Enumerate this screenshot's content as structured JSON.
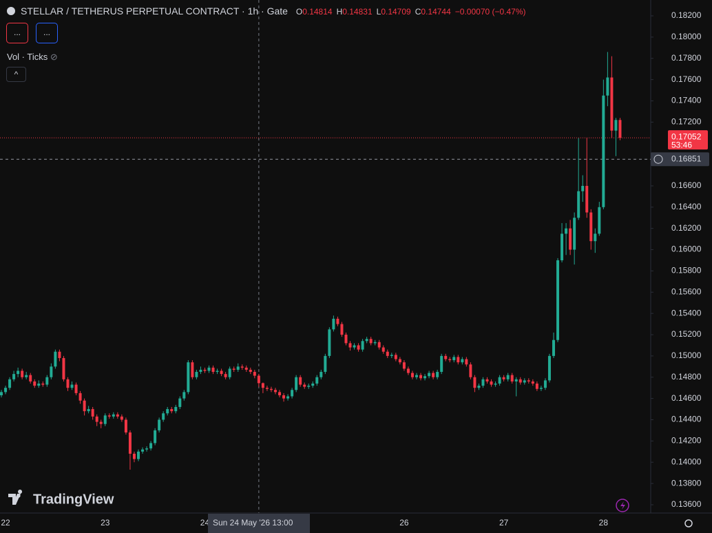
{
  "chart_data": {
    "type": "candlestick",
    "title": "STELLAR / TETHERUS PERPETUAL CONTRACT · 1h · Gate",
    "up_color": "#22ab94",
    "down_color": "#f23645",
    "categories": [
      null,
      "22",
      null,
      null,
      null,
      null,
      null,
      null,
      null,
      null,
      null,
      null,
      null,
      null,
      null,
      null,
      null,
      null,
      null,
      null,
      null,
      null,
      null,
      null,
      null,
      "23",
      null,
      null,
      null,
      null,
      null,
      null,
      null,
      null,
      null,
      null,
      null,
      null,
      null,
      null,
      null,
      null,
      null,
      null,
      null,
      null,
      null,
      null,
      null,
      "24",
      null,
      null,
      null,
      null,
      null,
      null,
      null,
      null,
      null,
      null,
      null,
      null,
      null,
      null,
      null,
      null,
      null,
      null,
      null,
      null,
      null,
      null,
      null,
      null,
      null,
      null,
      null,
      null,
      null,
      null,
      null,
      null,
      null,
      null,
      null,
      null,
      null,
      null,
      null,
      null,
      null,
      null,
      null,
      null,
      null,
      null,
      null,
      "26",
      null,
      null,
      null,
      null,
      null,
      null,
      null,
      null,
      null,
      null,
      null,
      null,
      null,
      null,
      null,
      null,
      null,
      null,
      null,
      null,
      null,
      null,
      null,
      "27",
      null,
      null,
      null,
      null,
      null,
      null,
      null,
      null,
      null,
      null,
      null,
      null,
      null,
      null,
      null,
      null,
      null,
      null,
      null,
      null,
      null,
      null,
      null,
      "28",
      null,
      null,
      null,
      null
    ],
    "ohlc": [
      [
        0.1463,
        0.1468,
        0.1461,
        0.1466
      ],
      [
        0.1466,
        0.1472,
        0.1464,
        0.147
      ],
      [
        0.147,
        0.148,
        0.1468,
        0.1478
      ],
      [
        0.1478,
        0.1486,
        0.1476,
        0.1483
      ],
      [
        0.1483,
        0.1489,
        0.148,
        0.1486
      ],
      [
        0.1486,
        0.1488,
        0.1478,
        0.148
      ],
      [
        0.148,
        0.1485,
        0.1478,
        0.1482
      ],
      [
        0.1482,
        0.1484,
        0.1474,
        0.1476
      ],
      [
        0.1476,
        0.1478,
        0.147,
        0.1472
      ],
      [
        0.1472,
        0.1477,
        0.147,
        0.1474
      ],
      [
        0.1474,
        0.1476,
        0.1471,
        0.1473
      ],
      [
        0.1473,
        0.1482,
        0.1471,
        0.148
      ],
      [
        0.148,
        0.1493,
        0.1478,
        0.149
      ],
      [
        0.149,
        0.1506,
        0.1488,
        0.1504
      ],
      [
        0.1504,
        0.1506,
        0.1495,
        0.1498
      ],
      [
        0.1498,
        0.15,
        0.1476,
        0.1478
      ],
      [
        0.1478,
        0.148,
        0.1467,
        0.147
      ],
      [
        0.147,
        0.1476,
        0.1468,
        0.1473
      ],
      [
        0.1473,
        0.1475,
        0.1463,
        0.1465
      ],
      [
        0.1465,
        0.1467,
        0.1455,
        0.1458
      ],
      [
        0.1458,
        0.146,
        0.1444,
        0.1448
      ],
      [
        0.1448,
        0.1453,
        0.1446,
        0.145
      ],
      [
        0.145,
        0.1452,
        0.144,
        0.1443
      ],
      [
        0.1443,
        0.1445,
        0.1434,
        0.1438
      ],
      [
        0.1438,
        0.144,
        0.1432,
        0.1436
      ],
      [
        0.1436,
        0.1446,
        0.1434,
        0.1444
      ],
      [
        0.1444,
        0.1446,
        0.1441,
        0.1443
      ],
      [
        0.1443,
        0.1447,
        0.1441,
        0.1445
      ],
      [
        0.1445,
        0.1447,
        0.1441,
        0.1443
      ],
      [
        0.1443,
        0.1445,
        0.1438,
        0.144
      ],
      [
        0.144,
        0.1442,
        0.1426,
        0.1428
      ],
      [
        0.1428,
        0.143,
        0.1393,
        0.1408
      ],
      [
        0.1408,
        0.141,
        0.14,
        0.1403
      ],
      [
        0.1403,
        0.1412,
        0.1401,
        0.141
      ],
      [
        0.141,
        0.1414,
        0.1408,
        0.1412
      ],
      [
        0.1412,
        0.1415,
        0.141,
        0.1413
      ],
      [
        0.1413,
        0.142,
        0.1411,
        0.1418
      ],
      [
        0.1418,
        0.1432,
        0.1416,
        0.143
      ],
      [
        0.143,
        0.1442,
        0.1428,
        0.144
      ],
      [
        0.144,
        0.1448,
        0.1438,
        0.1446
      ],
      [
        0.1446,
        0.1452,
        0.1444,
        0.145
      ],
      [
        0.145,
        0.1452,
        0.1446,
        0.1448
      ],
      [
        0.1448,
        0.1454,
        0.1446,
        0.1452
      ],
      [
        0.1452,
        0.1462,
        0.145,
        0.146
      ],
      [
        0.146,
        0.1468,
        0.1458,
        0.1466
      ],
      [
        0.1466,
        0.1496,
        0.1464,
        0.1494
      ],
      [
        0.1494,
        0.1496,
        0.1478,
        0.148
      ],
      [
        0.148,
        0.1487,
        0.1478,
        0.1485
      ],
      [
        0.1485,
        0.149,
        0.1483,
        0.1487
      ],
      [
        0.1487,
        0.1489,
        0.1484,
        0.1486
      ],
      [
        0.1486,
        0.1491,
        0.1484,
        0.1489
      ],
      [
        0.1489,
        0.1491,
        0.1483,
        0.1485
      ],
      [
        0.1485,
        0.1488,
        0.1483,
        0.1486
      ],
      [
        0.1486,
        0.1488,
        0.1481,
        0.1483
      ],
      [
        0.1483,
        0.1485,
        0.1478,
        0.148
      ],
      [
        0.148,
        0.149,
        0.1478,
        0.1488
      ],
      [
        0.1488,
        0.149,
        0.1485,
        0.1487
      ],
      [
        0.1487,
        0.1493,
        0.1485,
        0.149
      ],
      [
        0.149,
        0.1492,
        0.1487,
        0.1489
      ],
      [
        0.1489,
        0.1491,
        0.1485,
        0.1487
      ],
      [
        0.1487,
        0.1489,
        0.1483,
        0.1485
      ],
      [
        0.1485,
        0.1487,
        0.1479,
        0.14814
      ],
      [
        0.14814,
        0.14831,
        0.14709,
        0.14744
      ],
      [
        0.14744,
        0.1475,
        0.1465,
        0.147
      ],
      [
        0.147,
        0.1472,
        0.1467,
        0.1469
      ],
      [
        0.1469,
        0.1471,
        0.1466,
        0.1468
      ],
      [
        0.1468,
        0.147,
        0.1464,
        0.1466
      ],
      [
        0.1466,
        0.1468,
        0.1461,
        0.1463
      ],
      [
        0.1463,
        0.1465,
        0.1457,
        0.146
      ],
      [
        0.146,
        0.1464,
        0.1458,
        0.1462
      ],
      [
        0.1462,
        0.147,
        0.146,
        0.1468
      ],
      [
        0.1468,
        0.1482,
        0.1466,
        0.148
      ],
      [
        0.148,
        0.1482,
        0.1471,
        0.1473
      ],
      [
        0.1473,
        0.1475,
        0.1469,
        0.1471
      ],
      [
        0.1471,
        0.1474,
        0.1469,
        0.1472
      ],
      [
        0.1472,
        0.1476,
        0.147,
        0.1474
      ],
      [
        0.1474,
        0.1482,
        0.1472,
        0.148
      ],
      [
        0.148,
        0.1487,
        0.1478,
        0.1485
      ],
      [
        0.1485,
        0.1502,
        0.1483,
        0.15
      ],
      [
        0.15,
        0.1527,
        0.1498,
        0.1525
      ],
      [
        0.1525,
        0.1538,
        0.1523,
        0.1535
      ],
      [
        0.1535,
        0.1537,
        0.1528,
        0.153
      ],
      [
        0.153,
        0.1532,
        0.1518,
        0.152
      ],
      [
        0.152,
        0.1522,
        0.151,
        0.1512
      ],
      [
        0.1512,
        0.1514,
        0.1505,
        0.1508
      ],
      [
        0.1508,
        0.1512,
        0.1506,
        0.151
      ],
      [
        0.151,
        0.1512,
        0.1504,
        0.1506
      ],
      [
        0.1506,
        0.1516,
        0.1504,
        0.1514
      ],
      [
        0.1514,
        0.1518,
        0.1512,
        0.1516
      ],
      [
        0.1516,
        0.1518,
        0.151,
        0.1512
      ],
      [
        0.1512,
        0.1515,
        0.151,
        0.1513
      ],
      [
        0.1513,
        0.1515,
        0.1506,
        0.1508
      ],
      [
        0.1508,
        0.151,
        0.1502,
        0.1504
      ],
      [
        0.1504,
        0.1506,
        0.1498,
        0.15
      ],
      [
        0.15,
        0.1503,
        0.1498,
        0.1501
      ],
      [
        0.1501,
        0.1503,
        0.1495,
        0.1497
      ],
      [
        0.1497,
        0.1499,
        0.1492,
        0.1494
      ],
      [
        0.1494,
        0.1496,
        0.1486,
        0.1488
      ],
      [
        0.1488,
        0.149,
        0.1482,
        0.1484
      ],
      [
        0.1484,
        0.1486,
        0.1478,
        0.148
      ],
      [
        0.148,
        0.1484,
        0.1478,
        0.1482
      ],
      [
        0.1482,
        0.1484,
        0.1477,
        0.1479
      ],
      [
        0.1479,
        0.1483,
        0.1477,
        0.1481
      ],
      [
        0.1481,
        0.1486,
        0.1479,
        0.1484
      ],
      [
        0.1484,
        0.1486,
        0.1478,
        0.148
      ],
      [
        0.148,
        0.1487,
        0.1478,
        0.1485
      ],
      [
        0.1485,
        0.1502,
        0.1483,
        0.15
      ],
      [
        0.15,
        0.1502,
        0.1495,
        0.1497
      ],
      [
        0.1497,
        0.1499,
        0.1494,
        0.1496
      ],
      [
        0.1496,
        0.1501,
        0.1494,
        0.1499
      ],
      [
        0.1499,
        0.1501,
        0.1492,
        0.1494
      ],
      [
        0.1494,
        0.1499,
        0.1492,
        0.1497
      ],
      [
        0.1497,
        0.1499,
        0.149,
        0.1492
      ],
      [
        0.1492,
        0.1494,
        0.1478,
        0.148
      ],
      [
        0.148,
        0.1482,
        0.1466,
        0.147
      ],
      [
        0.147,
        0.1474,
        0.1468,
        0.1472
      ],
      [
        0.1472,
        0.148,
        0.147,
        0.1478
      ],
      [
        0.1478,
        0.148,
        0.1474,
        0.1476
      ],
      [
        0.1476,
        0.1478,
        0.1471,
        0.1473
      ],
      [
        0.1473,
        0.1476,
        0.1471,
        0.1474
      ],
      [
        0.1474,
        0.1482,
        0.1472,
        0.148
      ],
      [
        0.148,
        0.1482,
        0.1476,
        0.1478
      ],
      [
        0.1478,
        0.1484,
        0.1476,
        0.1482
      ],
      [
        0.1482,
        0.1484,
        0.1474,
        0.1476
      ],
      [
        0.1476,
        0.148,
        0.1462,
        0.1478
      ],
      [
        0.1478,
        0.148,
        0.1473,
        0.1475
      ],
      [
        0.1475,
        0.1479,
        0.1473,
        0.1477
      ],
      [
        0.1477,
        0.1479,
        0.1474,
        0.1476
      ],
      [
        0.1476,
        0.1478,
        0.1472,
        0.1474
      ],
      [
        0.1474,
        0.1476,
        0.1467,
        0.1469
      ],
      [
        0.1469,
        0.1472,
        0.1467,
        0.147
      ],
      [
        0.147,
        0.1479,
        0.1468,
        0.1477
      ],
      [
        0.1477,
        0.1502,
        0.1475,
        0.15
      ],
      [
        0.15,
        0.1522,
        0.1498,
        0.1515
      ],
      [
        0.1515,
        0.1592,
        0.1513,
        0.159
      ],
      [
        0.159,
        0.1625,
        0.1588,
        0.1615
      ],
      [
        0.1615,
        0.1625,
        0.1595,
        0.162
      ],
      [
        0.162,
        0.1628,
        0.1595,
        0.16
      ],
      [
        0.16,
        0.1635,
        0.1586,
        0.163
      ],
      [
        0.163,
        0.1705,
        0.1628,
        0.1655
      ],
      [
        0.1655,
        0.167,
        0.1645,
        0.166
      ],
      [
        0.166,
        0.1705,
        0.163,
        0.1635
      ],
      [
        0.1635,
        0.1638,
        0.16,
        0.1608
      ],
      [
        0.1608,
        0.162,
        0.1597,
        0.1615
      ],
      [
        0.1615,
        0.1645,
        0.1613,
        0.164
      ],
      [
        0.164,
        0.176,
        0.1638,
        0.1745
      ],
      [
        0.1745,
        0.1786,
        0.1735,
        0.1762
      ],
      [
        0.1762,
        0.1782,
        0.1705,
        0.1712
      ],
      [
        0.1712,
        0.1724,
        0.1688,
        0.1722
      ],
      [
        0.1722,
        0.1724,
        0.1703,
        0.17052
      ]
    ],
    "ylim": [
      0.13522,
      0.18349
    ],
    "yticks": [
      {
        "value": 0.182,
        "label": "0.18200"
      },
      {
        "value": 0.18,
        "label": "0.18000"
      },
      {
        "value": 0.178,
        "label": "0.17800"
      },
      {
        "value": 0.176,
        "label": "0.17600"
      },
      {
        "value": 0.174,
        "label": "0.17400"
      },
      {
        "value": 0.172,
        "label": "0.17200"
      },
      {
        "value": 0.166,
        "label": "0.16600"
      },
      {
        "value": 0.164,
        "label": "0.16400"
      },
      {
        "value": 0.162,
        "label": "0.16200"
      },
      {
        "value": 0.16,
        "label": "0.16000"
      },
      {
        "value": 0.158,
        "label": "0.15800"
      },
      {
        "value": 0.156,
        "label": "0.15600"
      },
      {
        "value": 0.154,
        "label": "0.15400"
      },
      {
        "value": 0.152,
        "label": "0.15200"
      },
      {
        "value": 0.15,
        "label": "0.15000"
      },
      {
        "value": 0.148,
        "label": "0.14800"
      },
      {
        "value": 0.146,
        "label": "0.14600"
      },
      {
        "value": 0.144,
        "label": "0.14400"
      },
      {
        "value": 0.142,
        "label": "0.14200"
      },
      {
        "value": 0.14,
        "label": "0.14000"
      },
      {
        "value": 0.138,
        "label": "0.13800"
      },
      {
        "value": 0.136,
        "label": "0.13600"
      }
    ],
    "grid": false,
    "last_price": 0.17052,
    "countdown": "53:46",
    "crosshair": {
      "price": 0.16851,
      "time": "Sun 24 May '26 13:00",
      "index": 62
    },
    "legend": {
      "o": "O",
      "h": "H",
      "l": "L",
      "c": "C",
      "change": "−0.00070 (−0.47%)"
    }
  },
  "ui": {
    "indicator": "Vol · Ticks",
    "button": "...",
    "watermark": "TradingView"
  }
}
